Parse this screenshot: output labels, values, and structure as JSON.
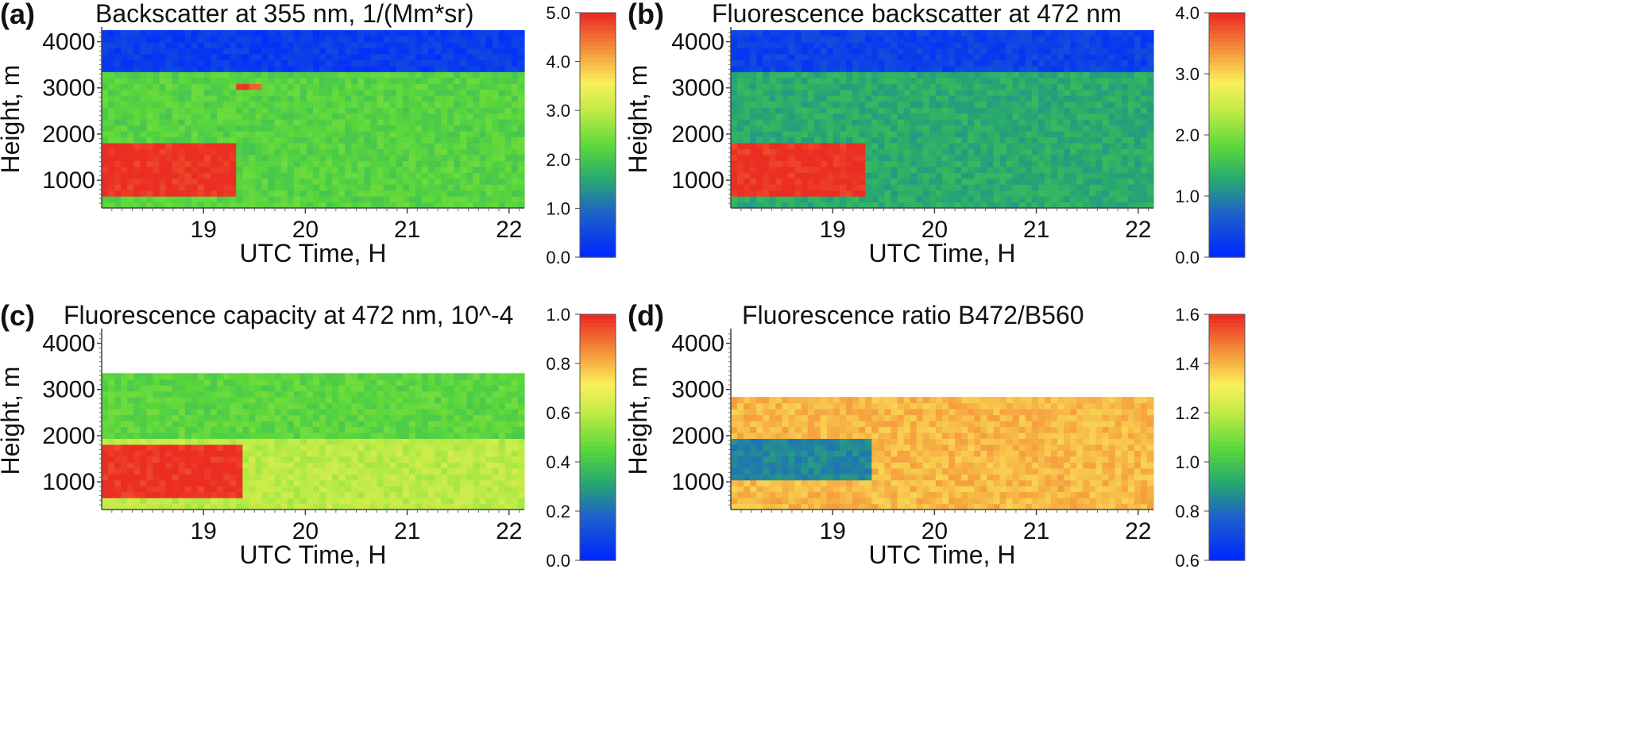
{
  "chart_data": [
    {
      "type": "heatmap",
      "panel_label": "(a)",
      "title": "Backscatter at 355 nm, 1/(Mm*sr)",
      "xlabel": "UTC Time, H",
      "ylabel": "Height, m",
      "xlim": [
        18.0,
        22.15
      ],
      "ylim": [
        400,
        4250
      ],
      "x_ticks": [
        19,
        20,
        21,
        22
      ],
      "y_ticks": [
        1000,
        2000,
        3000,
        4000
      ],
      "colorbar": {
        "min": 0.0,
        "max": 5.0,
        "ticks": [
          "0.0",
          "1.0",
          "2.0",
          "3.0",
          "4.0",
          "5.0"
        ]
      },
      "features": [
        {
          "description": "dense aerosol layer",
          "x_range": [
            18.0,
            19.3
          ],
          "y_range": [
            700,
            1800
          ],
          "value": 5.0
        },
        {
          "description": "boundary layer aerosol",
          "x_range": [
            18.0,
            22.15
          ],
          "y_range": [
            400,
            3300
          ],
          "value": 2.2
        },
        {
          "description": "free troposphere",
          "x_range": [
            18.0,
            22.15
          ],
          "y_range": [
            3300,
            4250
          ],
          "value": 0.3
        },
        {
          "description": "small patch",
          "x_range": [
            19.35,
            19.55
          ],
          "y_range": [
            3000,
            3100
          ],
          "value": 4.8
        }
      ]
    },
    {
      "type": "heatmap",
      "panel_label": "(b)",
      "title": "Fluorescence backscatter at 472 nm",
      "xlabel": "UTC Time, H",
      "ylabel": "Height, m",
      "xlim": [
        18.0,
        22.15
      ],
      "ylim": [
        400,
        4250
      ],
      "x_ticks": [
        19,
        20,
        21,
        22
      ],
      "y_ticks": [
        1000,
        2000,
        3000,
        4000
      ],
      "colorbar": {
        "min": 0.0,
        "max": 4.0,
        "ticks": [
          "0.0",
          "1.0",
          "2.0",
          "3.0",
          "4.0"
        ]
      },
      "features": [
        {
          "description": "dense aerosol layer",
          "x_range": [
            18.0,
            19.35
          ],
          "y_range": [
            700,
            1800
          ],
          "value": 4.0
        },
        {
          "description": "aerosol layer",
          "x_range": [
            18.0,
            22.15
          ],
          "y_range": [
            400,
            3300
          ],
          "value": 1.3
        },
        {
          "description": "free troposphere",
          "x_range": [
            18.0,
            22.15
          ],
          "y_range": [
            3300,
            4250
          ],
          "value": 0.3
        }
      ]
    },
    {
      "type": "heatmap",
      "panel_label": "(c)",
      "title": "Fluorescence capacity at 472 nm, 10^-4",
      "xlabel": "UTC Time, H",
      "ylabel": "Height, m",
      "xlim": [
        18.0,
        22.15
      ],
      "ylim": [
        400,
        4250
      ],
      "x_ticks": [
        19,
        20,
        21,
        22
      ],
      "y_ticks": [
        1000,
        2000,
        3000,
        4000
      ],
      "colorbar": {
        "min": 0.0,
        "max": 1.0,
        "ticks": [
          "0.0",
          "0.2",
          "0.4",
          "0.6",
          "0.8",
          "1.0"
        ]
      },
      "features": [
        {
          "description": "dense aerosol layer",
          "x_range": [
            18.0,
            19.4
          ],
          "y_range": [
            700,
            1800
          ],
          "value": 1.0
        },
        {
          "description": "lower layer",
          "x_range": [
            18.0,
            22.15
          ],
          "y_range": [
            400,
            2000
          ],
          "value": 0.6
        },
        {
          "description": "upper layer",
          "x_range": [
            18.0,
            22.15
          ],
          "y_range": [
            2000,
            3300
          ],
          "value": 0.45
        },
        {
          "description": "no data above layer",
          "x_range": [
            18.0,
            22.15
          ],
          "y_range": [
            3300,
            4250
          ],
          "value": null
        }
      ]
    },
    {
      "type": "heatmap",
      "panel_label": "(d)",
      "title": "Fluorescence ratio B472/B560",
      "xlabel": "UTC Time, H",
      "ylabel": "Height, m",
      "xlim": [
        18.0,
        22.15
      ],
      "ylim": [
        400,
        4250
      ],
      "x_ticks": [
        19,
        20,
        21,
        22
      ],
      "y_ticks": [
        1000,
        2000,
        3000,
        4000
      ],
      "colorbar": {
        "min": 0.6,
        "max": 1.6,
        "ticks": [
          "0.6",
          "0.8",
          "1.0",
          "1.2",
          "1.4",
          "1.6"
        ]
      },
      "features": [
        {
          "description": "elevated layer",
          "x_range": [
            18.0,
            19.4
          ],
          "y_range": [
            1000,
            1900
          ],
          "value": 0.85
        },
        {
          "description": "ratio field",
          "x_range": [
            18.0,
            22.15
          ],
          "y_range": [
            400,
            2850
          ],
          "value": 1.4
        },
        {
          "description": "no data above 2850 m",
          "x_range": [
            18.0,
            22.15
          ],
          "y_range": [
            2850,
            4250
          ],
          "value": null
        }
      ]
    }
  ]
}
